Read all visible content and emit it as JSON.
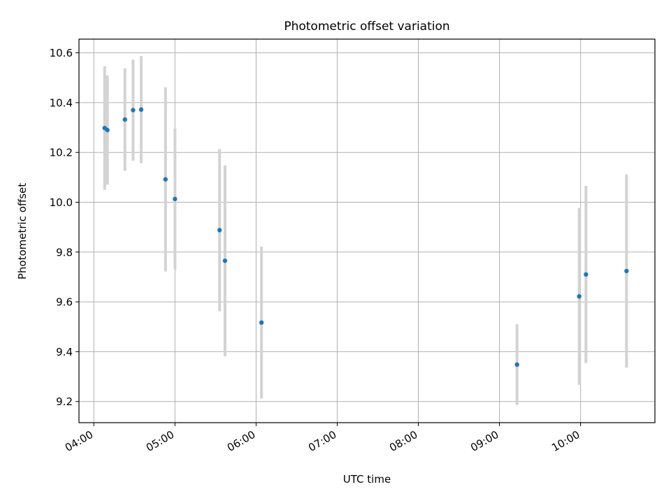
{
  "chart_data": {
    "type": "scatter",
    "title": "Photometric offset variation",
    "xlabel": "UTC time",
    "ylabel": "Photometric offset",
    "x_unit": "UTC time (HH:MM)",
    "xlim": [
      "03:49",
      "10:55"
    ],
    "ylim": [
      9.115,
      10.655
    ],
    "x_ticks": [
      "04:00",
      "05:00",
      "06:00",
      "07:00",
      "08:00",
      "09:00",
      "10:00"
    ],
    "y_ticks": [
      "9.2",
      "9.4",
      "9.6",
      "9.8",
      "10.0",
      "10.2",
      "10.4",
      "10.6"
    ],
    "grid": true,
    "legend": "none",
    "series": [
      {
        "marker_color": "#1f77b4",
        "errorbar_color": "#d3d3d3",
        "points": [
          {
            "x": "04:08",
            "y": 10.298,
            "yerr": 0.248
          },
          {
            "x": "04:10",
            "y": 10.29,
            "yerr": 0.219
          },
          {
            "x": "04:23",
            "y": 10.332,
            "yerr": 0.206
          },
          {
            "x": "04:29",
            "y": 10.37,
            "yerr": 0.203
          },
          {
            "x": "04:35",
            "y": 10.372,
            "yerr": 0.215
          },
          {
            "x": "04:53",
            "y": 10.092,
            "yerr": 0.37
          },
          {
            "x": "05:00",
            "y": 10.013,
            "yerr": 0.283
          },
          {
            "x": "05:33",
            "y": 9.888,
            "yerr": 0.326
          },
          {
            "x": "05:37",
            "y": 9.765,
            "yerr": 0.383
          },
          {
            "x": "06:04",
            "y": 9.517,
            "yerr": 0.305
          },
          {
            "x": "09:13",
            "y": 9.348,
            "yerr": 0.162
          },
          {
            "x": "09:59",
            "y": 9.622,
            "yerr": 0.355
          },
          {
            "x": "10:04",
            "y": 9.71,
            "yerr": 0.356
          },
          {
            "x": "10:34",
            "y": 9.724,
            "yerr": 0.388
          }
        ]
      }
    ]
  }
}
